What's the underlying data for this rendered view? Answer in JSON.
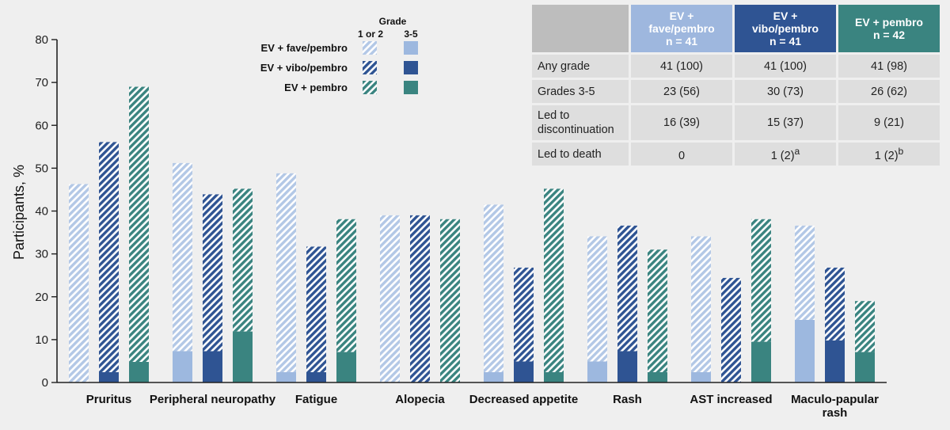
{
  "chart_data": {
    "type": "bar",
    "ylabel": "Participants, %",
    "ylim": [
      0,
      80
    ],
    "yticks": [
      0,
      10,
      20,
      30,
      40,
      50,
      60,
      70,
      80
    ],
    "categories": [
      "Pruritus",
      "Peripheral neuropathy",
      "Fatigue",
      "Alopecia",
      "Decreased appetite",
      "Rash",
      "AST increased",
      "Maculo-papular rash"
    ],
    "stacked": true,
    "series": [
      {
        "name": "EV + fave/pembro",
        "color_light": "#b3c8e6",
        "color_dark": "#9db8df",
        "grade_3_5": [
          0,
          7.3,
          2.4,
          0,
          2.4,
          4.9,
          2.4,
          14.6
        ],
        "total": [
          46.3,
          51.2,
          48.8,
          39.0,
          41.5,
          34.1,
          34.1,
          36.6
        ]
      },
      {
        "name": "EV + vibo/pembro",
        "color_light": "#2f5493",
        "color_dark": "#2f5493",
        "grade_3_5": [
          2.4,
          7.3,
          2.4,
          0,
          4.9,
          7.3,
          0,
          9.8
        ],
        "total": [
          56.1,
          43.9,
          31.7,
          39.0,
          26.8,
          36.6,
          24.4,
          26.8
        ]
      },
      {
        "name": "EV + pembro",
        "color_light": "#3a8480",
        "color_dark": "#3a8480",
        "grade_3_5": [
          4.8,
          11.9,
          7.1,
          0,
          2.4,
          2.4,
          9.5,
          7.1
        ],
        "total": [
          69.0,
          45.2,
          38.1,
          38.1,
          45.2,
          31.0,
          38.1,
          19.0
        ]
      }
    ],
    "legend": {
      "title": "Grade",
      "columns": [
        "1 or 2",
        "3-5"
      ],
      "entries": [
        "EV + fave/pembro",
        "EV + vibo/pembro",
        "EV + pembro"
      ],
      "placement": "top-center"
    },
    "grid": false
  },
  "table": {
    "headers": [
      {
        "lines": [
          "EV +",
          "fave/pembro",
          "n = 41"
        ]
      },
      {
        "lines": [
          "EV +",
          "vibo/pembro",
          "n = 41"
        ]
      },
      {
        "lines": [
          "EV + pembro",
          "n = 42"
        ]
      }
    ],
    "rows": [
      {
        "label_lines": [
          "Any grade"
        ],
        "cells": [
          {
            "v": "41 (100)",
            "sup": ""
          },
          {
            "v": "41 (100)",
            "sup": ""
          },
          {
            "v": "41 (98)",
            "sup": ""
          }
        ]
      },
      {
        "label_lines": [
          "Grades 3-5"
        ],
        "cells": [
          {
            "v": "23 (56)",
            "sup": ""
          },
          {
            "v": "30 (73)",
            "sup": ""
          },
          {
            "v": "26 (62)",
            "sup": ""
          }
        ]
      },
      {
        "label_lines": [
          "Led to",
          "discontinuation"
        ],
        "cells": [
          {
            "v": "16 (39)",
            "sup": ""
          },
          {
            "v": "15 (37)",
            "sup": ""
          },
          {
            "v": "9 (21)",
            "sup": ""
          }
        ]
      },
      {
        "label_lines": [
          "Led to death"
        ],
        "cells": [
          {
            "v": "0",
            "sup": ""
          },
          {
            "v": "1 (2)",
            "sup": "a"
          },
          {
            "v": "1 (2)",
            "sup": "b"
          }
        ]
      }
    ]
  }
}
